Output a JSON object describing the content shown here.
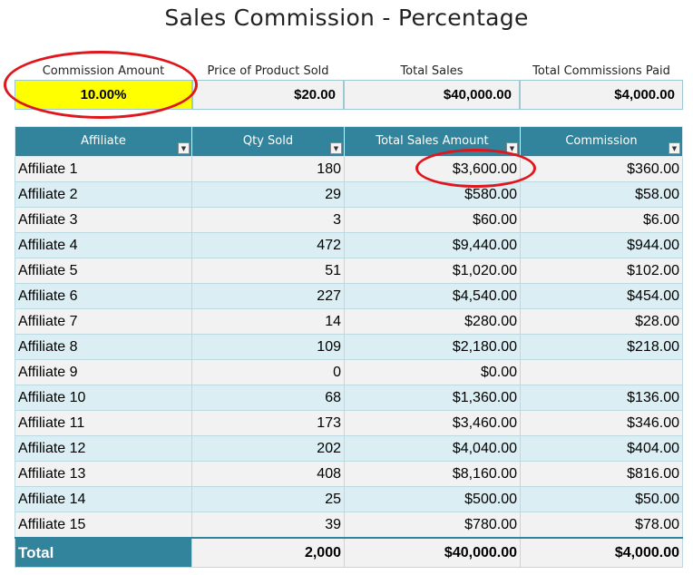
{
  "title": "Sales Commission - Percentage",
  "summary": [
    {
      "label": "Commission Amount",
      "value": "10.00%"
    },
    {
      "label": "Price of Product Sold",
      "value": "$20.00"
    },
    {
      "label": "Total Sales",
      "value": "$40,000.00"
    },
    {
      "label": "Total Commissions Paid",
      "value": "$4,000.00"
    }
  ],
  "table": {
    "headers": [
      "Affiliate",
      "Qty Sold",
      "Total Sales Amount",
      "Commission"
    ],
    "filter_icon": "dropdown-arrow-icon",
    "rows": [
      [
        "Affiliate 1",
        "180",
        "$3,600.00",
        "$360.00"
      ],
      [
        "Affiliate 2",
        "29",
        "$580.00",
        "$58.00"
      ],
      [
        "Affiliate 3",
        "3",
        "$60.00",
        "$6.00"
      ],
      [
        "Affiliate 4",
        "472",
        "$9,440.00",
        "$944.00"
      ],
      [
        "Affiliate 5",
        "51",
        "$1,020.00",
        "$102.00"
      ],
      [
        "Affiliate 6",
        "227",
        "$4,540.00",
        "$454.00"
      ],
      [
        "Affiliate 7",
        "14",
        "$280.00",
        "$28.00"
      ],
      [
        "Affiliate 8",
        "109",
        "$2,180.00",
        "$218.00"
      ],
      [
        "Affiliate 9",
        "0",
        "$0.00",
        ""
      ],
      [
        "Affiliate 10",
        "68",
        "$1,360.00",
        "$136.00"
      ],
      [
        "Affiliate 11",
        "173",
        "$3,460.00",
        "$346.00"
      ],
      [
        "Affiliate 12",
        "202",
        "$4,040.00",
        "$404.00"
      ],
      [
        "Affiliate 13",
        "408",
        "$8,160.00",
        "$816.00"
      ],
      [
        "Affiliate 14",
        "25",
        "$500.00",
        "$50.00"
      ],
      [
        "Affiliate 15",
        "39",
        "$780.00",
        "$78.00"
      ]
    ],
    "total": [
      "Total",
      "2,000",
      "$40,000.00",
      "$4,000.00"
    ]
  },
  "colors": {
    "header_teal": "#31849b",
    "band_light": "#daeef3",
    "band_gray": "#f2f2f2",
    "highlight_yellow": "#ffff00",
    "annotation_red": "#e0161c"
  }
}
